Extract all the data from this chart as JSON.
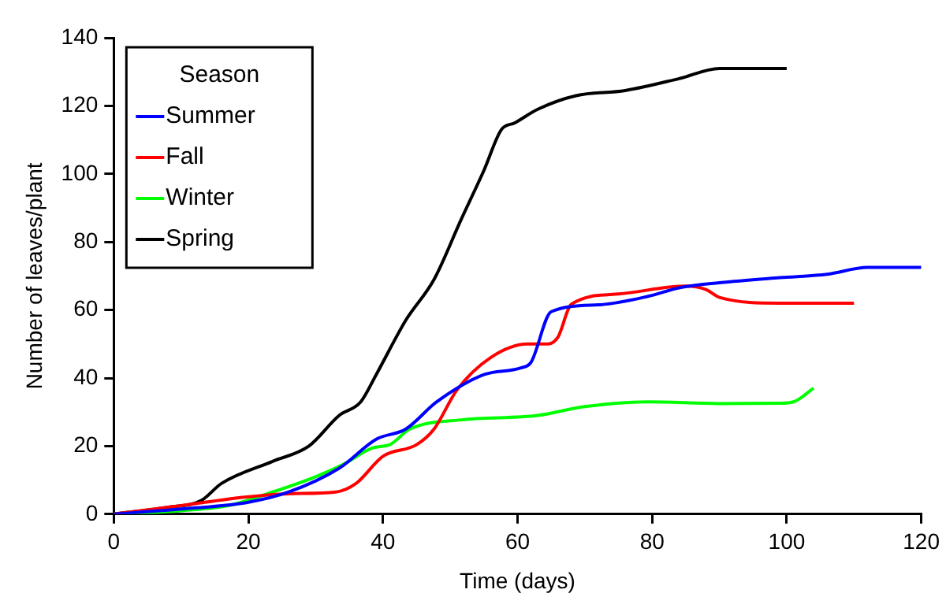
{
  "chart_data": {
    "type": "line",
    "xlabel": "Time (days)",
    "ylabel": "Number of leaves/plant",
    "legend_title": "Season",
    "legend": "top left",
    "grid": false,
    "marker": "none",
    "line_style": "solid",
    "xlim": [
      0,
      120
    ],
    "xticks": [
      0,
      20,
      40,
      60,
      80,
      100,
      120
    ],
    "ylim": [
      0,
      140
    ],
    "yticks": [
      0,
      20,
      40,
      60,
      80,
      100,
      120,
      140
    ],
    "series": [
      {
        "name": "Summer",
        "color": "#0000ff",
        "x": [
          0,
          10,
          20,
          26,
          33.5,
          39,
          43.4,
          48,
          55,
          60.5,
          62,
          65,
          72,
          79.4,
          84,
          90,
          99,
          106,
          112,
          120
        ],
        "values": [
          0,
          1.5,
          3.5,
          6.5,
          13.5,
          22,
          25,
          33,
          41,
          43,
          44.6,
          59.5,
          61.5,
          64,
          66.5,
          68,
          69.5,
          70.5,
          72.5,
          72.5
        ]
      },
      {
        "name": "Fall",
        "color": "#ff0000",
        "x": [
          0,
          10,
          19.4,
          26,
          33,
          36,
          40,
          45,
          47.6,
          51,
          56,
          61.5,
          64.5,
          66,
          68,
          75,
          85,
          88,
          90,
          99,
          110
        ],
        "values": [
          0,
          2.5,
          5,
          6,
          6.5,
          9,
          17,
          20.4,
          25,
          36.5,
          46,
          50,
          50,
          52,
          61.7,
          64.7,
          67,
          66,
          63.7,
          62,
          62
        ]
      },
      {
        "name": "Winter",
        "color": "#00ff00",
        "x": [
          0,
          10,
          17,
          23.6,
          30,
          34,
          38.5,
          41,
          44,
          51.6,
          63,
          70,
          79.4,
          90,
          99,
          101,
          104
        ],
        "values": [
          0,
          1,
          2.5,
          6.5,
          11,
          14.5,
          19.5,
          20.4,
          25,
          27.7,
          29,
          31.6,
          33,
          32.5,
          32.6,
          33,
          37
        ]
      },
      {
        "name": "Spring",
        "color": "#000000",
        "x": [
          0,
          8,
          13,
          16,
          23.6,
          29,
          33.5,
          36.7,
          39,
          43.4,
          47.6,
          51.6,
          55,
          57.6,
          59.6,
          63,
          68.7,
          76,
          84,
          90,
          100
        ],
        "values": [
          0,
          2,
          4,
          9,
          15.5,
          20,
          29,
          33,
          41,
          57,
          69,
          86.5,
          101,
          113,
          115,
          119,
          123,
          124.5,
          128,
          131,
          131
        ]
      }
    ]
  }
}
